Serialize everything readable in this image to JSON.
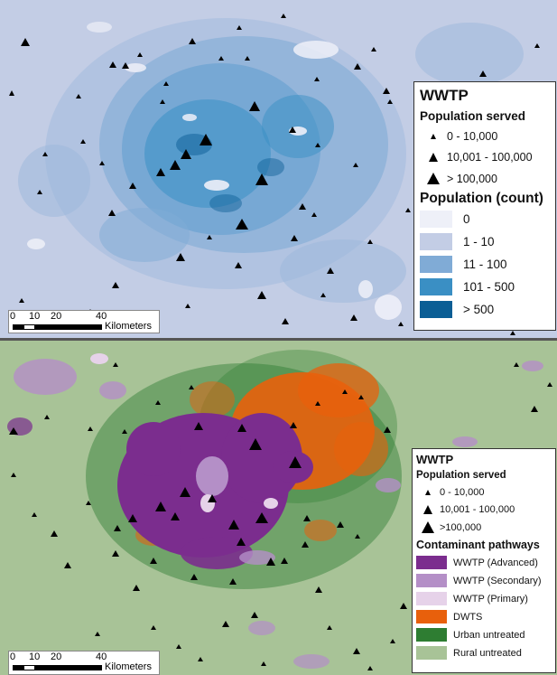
{
  "top_map": {
    "legend": {
      "title": "WWTP",
      "symbols_heading": "Population served",
      "symbols": [
        {
          "label": "0 - 10,000",
          "size": "small"
        },
        {
          "label": "10,001 - 100,000",
          "size": "medium"
        },
        {
          "label": "> 100,000",
          "size": "large"
        }
      ],
      "classes_heading": "Population (count)",
      "classes": [
        {
          "label": "0",
          "color": "#eef0f8"
        },
        {
          "label": "1 - 10",
          "color": "#c3cde5"
        },
        {
          "label": "11 - 100",
          "color": "#80abd6"
        },
        {
          "label": "101 - 500",
          "color": "#3a8fc4"
        },
        {
          "label": "> 500",
          "color": "#0b5e95"
        }
      ]
    },
    "scale": {
      "ticks": [
        "0",
        "10",
        "20",
        "40"
      ],
      "unit": "Kilometers"
    }
  },
  "bottom_map": {
    "legend": {
      "title": "WWTP",
      "symbols_heading": "Population served",
      "symbols": [
        {
          "label": "0 - 10,000",
          "size": "small"
        },
        {
          "label": "10,001 - 100,000",
          "size": "medium"
        },
        {
          "label": ">100,000",
          "size": "large"
        }
      ],
      "classes_heading": "Contaminant pathways",
      "classes": [
        {
          "label": "WWTP (Advanced)",
          "color": "#7b2d8e"
        },
        {
          "label": "WWTP (Secondary)",
          "color": "#b48fc7"
        },
        {
          "label": "WWTP (Primary)",
          "color": "#e6d2e9"
        },
        {
          "label": "DWTS",
          "color": "#e8600c"
        },
        {
          "label": "Urban untreated",
          "color": "#2e7d32"
        },
        {
          "label": "Rural untreated",
          "color": "#a8c397"
        }
      ]
    },
    "scale": {
      "ticks": [
        "0",
        "10",
        "20",
        "40"
      ],
      "unit": "Kilometers"
    }
  }
}
